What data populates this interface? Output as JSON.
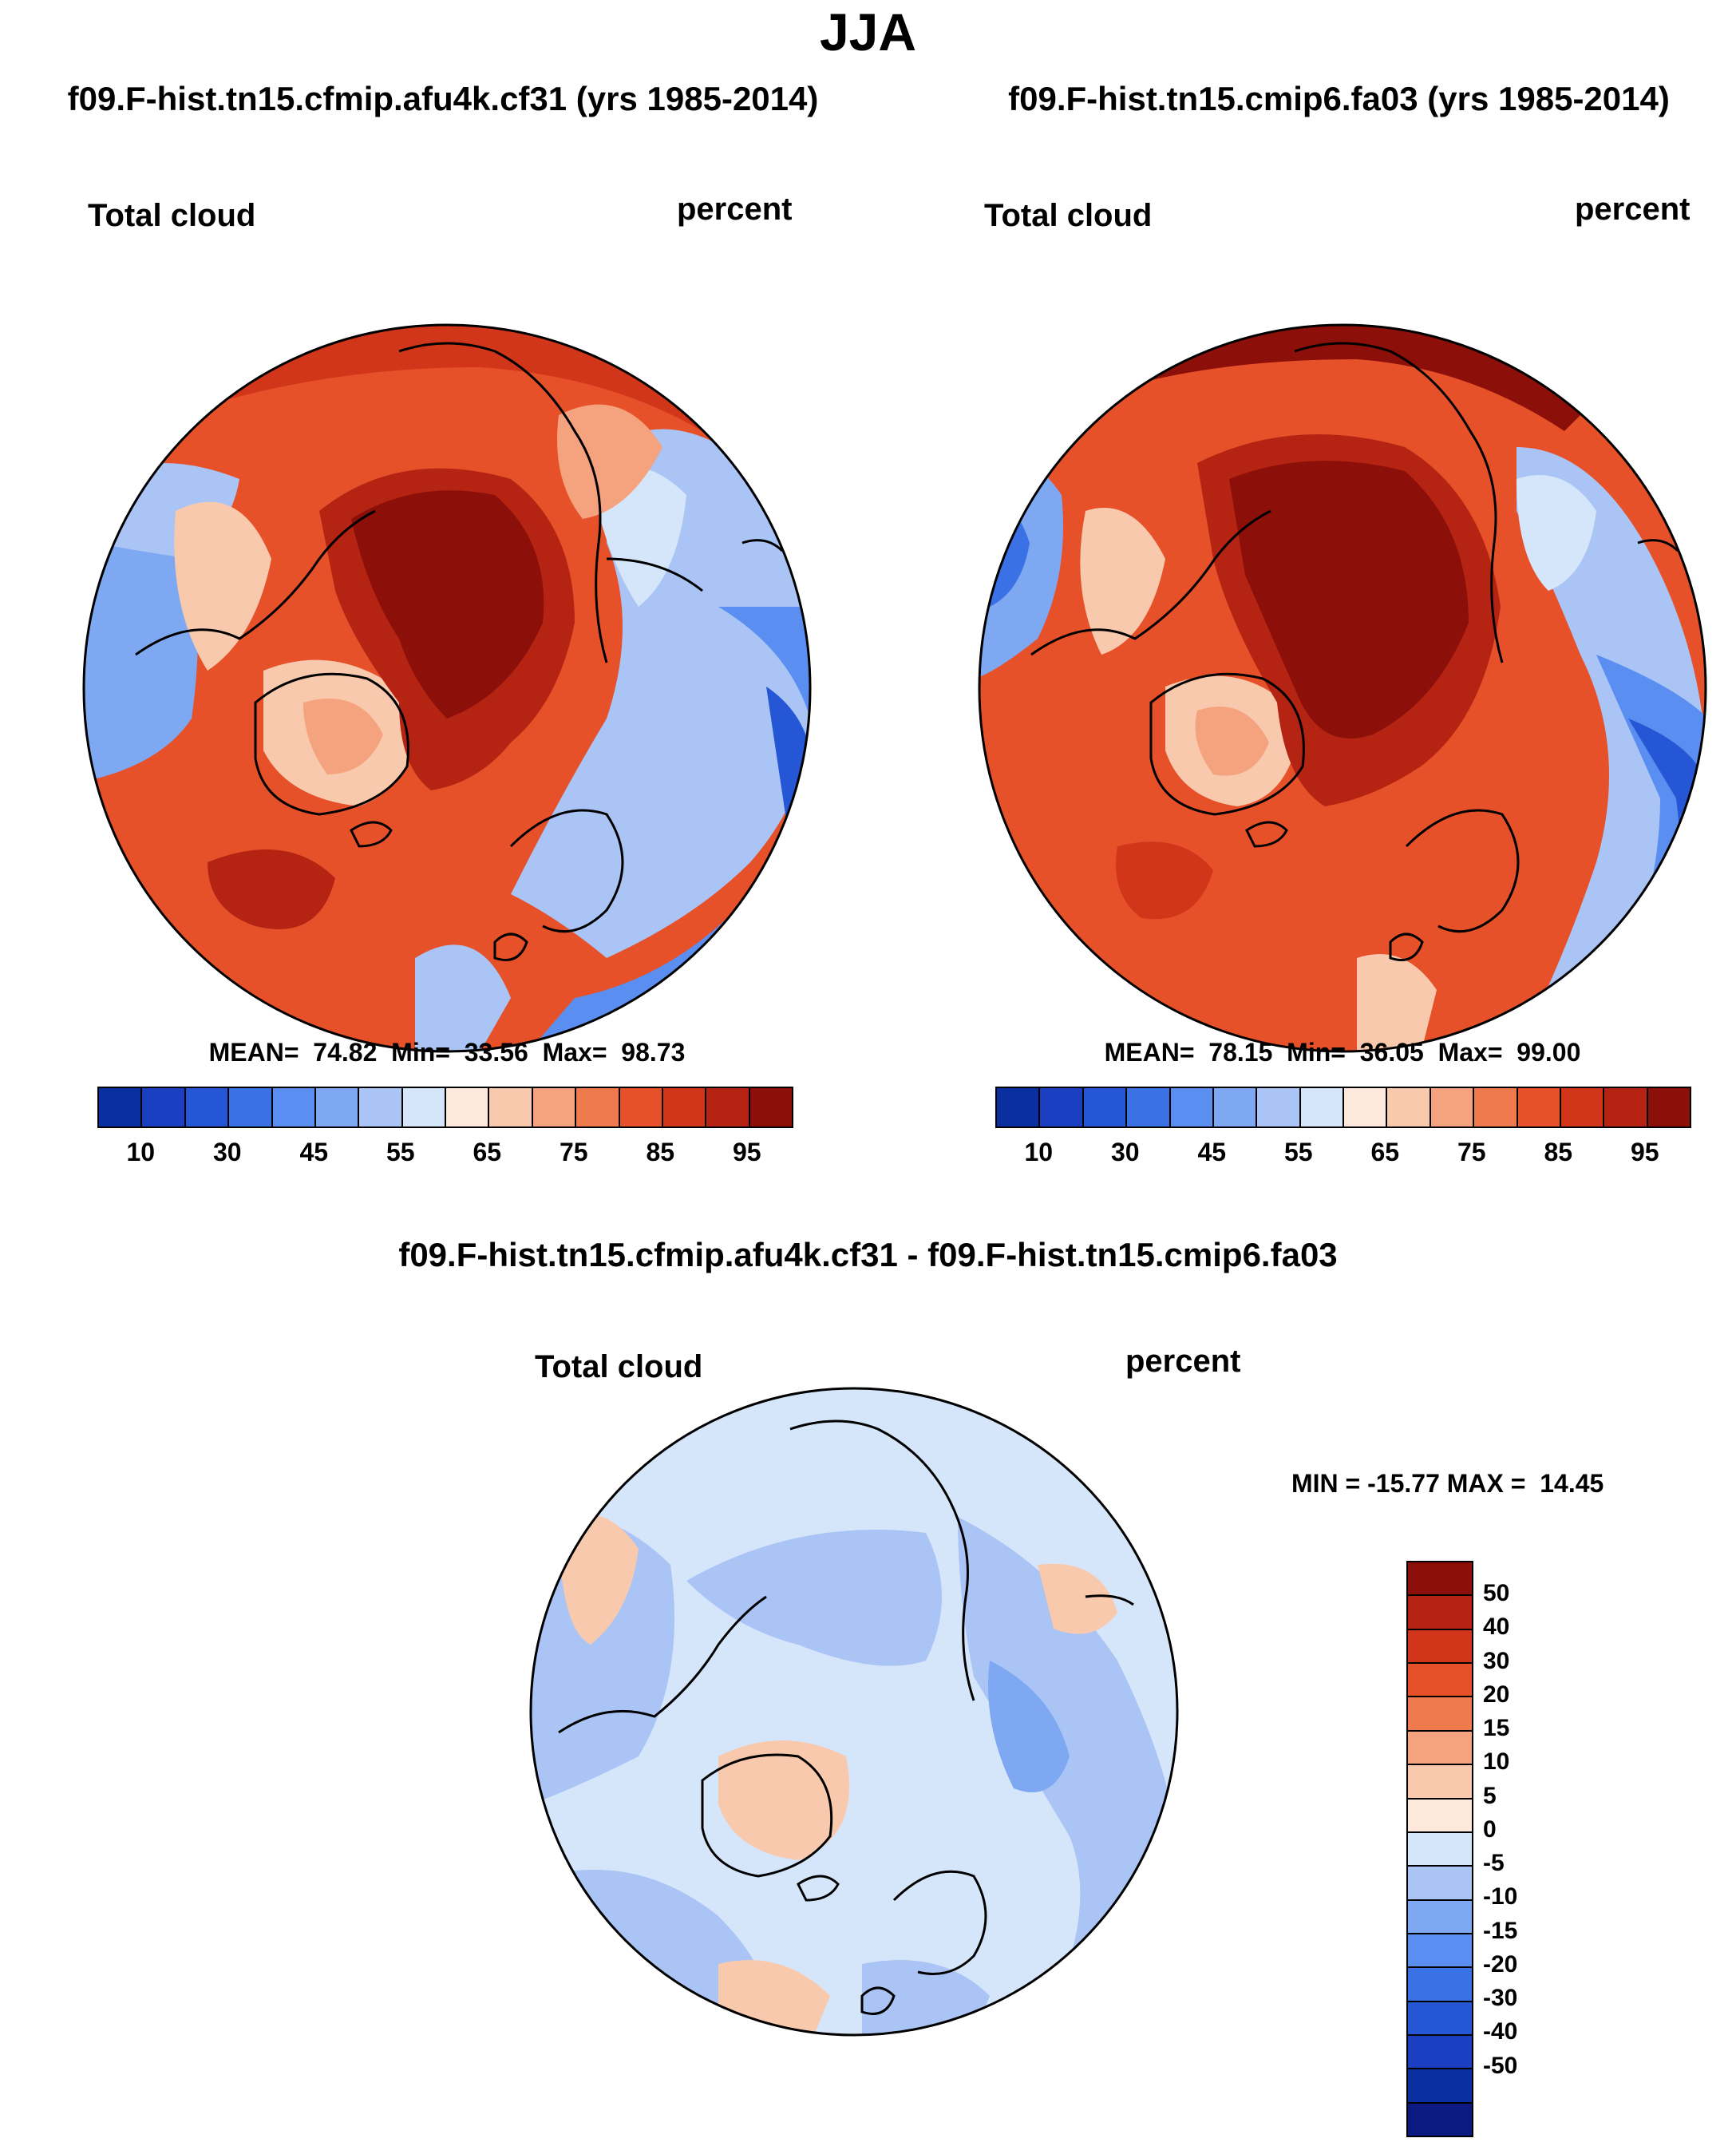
{
  "title": "JJA",
  "panels": [
    {
      "case_title": "f09.F-hist.tn15.cfmip.afu4k.cf31 (yrs 1985-2014)",
      "variable": "Total cloud",
      "units": "percent",
      "stats": {
        "mean": "74.82",
        "min": "33.56",
        "max": "98.73"
      },
      "stats_line": "MEAN=  74.82  Min=  33.56  Max=  98.73"
    },
    {
      "case_title": "f09.F-hist.tn15.cmip6.fa03 (yrs 1985-2014)",
      "variable": "Total cloud",
      "units": "percent",
      "stats": {
        "mean": "78.15",
        "min": "36.05",
        "max": "99.00"
      },
      "stats_line": "MEAN=  78.15  Min=  36.05  Max=  99.00"
    }
  ],
  "diff_panel": {
    "title": "f09.F-hist.tn15.cfmip.afu4k.cf31 - f09.F-hist.tn15.cmip6.fa03",
    "variable": "Total cloud",
    "units": "percent",
    "minmax_line": "MIN = -15.77 MAX =  14.45",
    "stats": {
      "min": "-15.77",
      "max": "14.45"
    }
  },
  "colorbar_abs": {
    "orientation": "horizontal",
    "colors": [
      "#0a2fa0",
      "#1a3fc0",
      "#2456d6",
      "#3a72e6",
      "#5a8ef0",
      "#7fa8f2",
      "#a9c4f5",
      "#d6e6fa",
      "#fde9dc",
      "#f9c9ae",
      "#f5a37e",
      "#ef7a4e",
      "#e6512a",
      "#d2361a",
      "#b52412",
      "#8c0f0a"
    ],
    "tick_labels": [
      "10",
      "30",
      "45",
      "55",
      "65",
      "75",
      "85",
      "95"
    ]
  },
  "colorbar_diff": {
    "orientation": "vertical",
    "colors_top_to_bottom": [
      "#8c0f0a",
      "#b52412",
      "#d2361a",
      "#e6512a",
      "#ef7a4e",
      "#f5a37e",
      "#f9c9ae",
      "#fde9dc",
      "#d6e6fa",
      "#a9c4f5",
      "#7fa8f2",
      "#5a8ef0",
      "#3a72e6",
      "#2456d6",
      "#1a3fc0",
      "#0a2fa0",
      "#0a1a80"
    ],
    "tick_labels": [
      "50",
      "40",
      "30",
      "20",
      "15",
      "10",
      "5",
      "0",
      "-5",
      "-10",
      "-15",
      "-20",
      "-30",
      "-40",
      "-50"
    ]
  }
}
